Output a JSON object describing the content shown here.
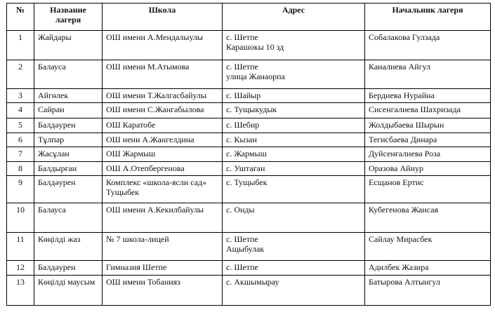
{
  "headers": [
    "№",
    "Название лагеря",
    "Школа",
    "Адрес",
    "Начальник лагеря"
  ],
  "rows": [
    {
      "num": "1",
      "camp": "Жайдары",
      "school": "ОШ имени А.Мендалыулы",
      "address": "с. Шетпе",
      "address2": "Карашокы 10 зд",
      "head": "Собалакова Гулзада"
    },
    {
      "num": "2",
      "camp": "Балауса",
      "school": "ОШ имени М.Атымова",
      "address": "с. Шетпе",
      "address2": "улица Жанаорпа",
      "head": "Каналиева Айгул"
    },
    {
      "num": "3",
      "camp": "Айгөлек",
      "school": "ОШ имени Т.Жалгасбайулы",
      "address": "с. Шайыр",
      "address2": "",
      "head": "Бердиева Нурайна"
    },
    {
      "num": "4",
      "camp": "Сайран",
      "school": "ОШ имени С.Жангабылова",
      "address": "с. Тущыкудык",
      "address2": "",
      "head": "Сисенгалиева Шахризада"
    },
    {
      "num": "5",
      "camp": "Балдәурен",
      "school": "ОШ Каратобе",
      "address": "с. Шебир",
      "address2": "",
      "head": "Жолдыбаева Шырын"
    },
    {
      "num": "6",
      "camp": "Тұлпар",
      "school": "ОШ иени А.Жангелдина",
      "address": "с. Кызан",
      "address2": "",
      "head": "Тегисбаева Динара"
    },
    {
      "num": "7",
      "camp": "Жасұлан",
      "school": "ОШ Жармыш",
      "address": "с. Жармыш",
      "address2": "",
      "head": "Дуйсенғалиева Роза"
    },
    {
      "num": "8",
      "camp": "Балдырған",
      "school": "ОШ А.Отепбергенова",
      "address": "с. Уштаған",
      "address2": "",
      "head": "Оразова Айнур"
    },
    {
      "num": "9",
      "camp": "Балдәурен",
      "school": "Комплекс «школа-ясли сад» Тущыбек",
      "address": "с. Тущыбек",
      "address2": "",
      "head": "Есщанов Ертис"
    },
    {
      "num": "10",
      "camp": "Балауса",
      "school": "ОШ имени А.Кекилбайулы",
      "address": "с. Онды",
      "address2": "",
      "head": "Кубегенова Жансая"
    },
    {
      "num": "11",
      "camp": "Көңілді жаз",
      "school": "№ 7 школа-лицей",
      "address": "с. Шетпе",
      "address2": "Ащыбулак",
      "head": "Сайлау Мирасбек"
    },
    {
      "num": "12",
      "camp": "Балдәурен",
      "school": "Гимназия Шетпе",
      "address": "с. Шетпе",
      "address2": "",
      "head": "Адилбек Жазира"
    },
    {
      "num": "13",
      "camp": "Көңілді маусым",
      "school": "ОШ имени Тобанияз",
      "address": "с. Акшымырау",
      "address2": "",
      "head": "Батырова Алтынгул"
    }
  ]
}
